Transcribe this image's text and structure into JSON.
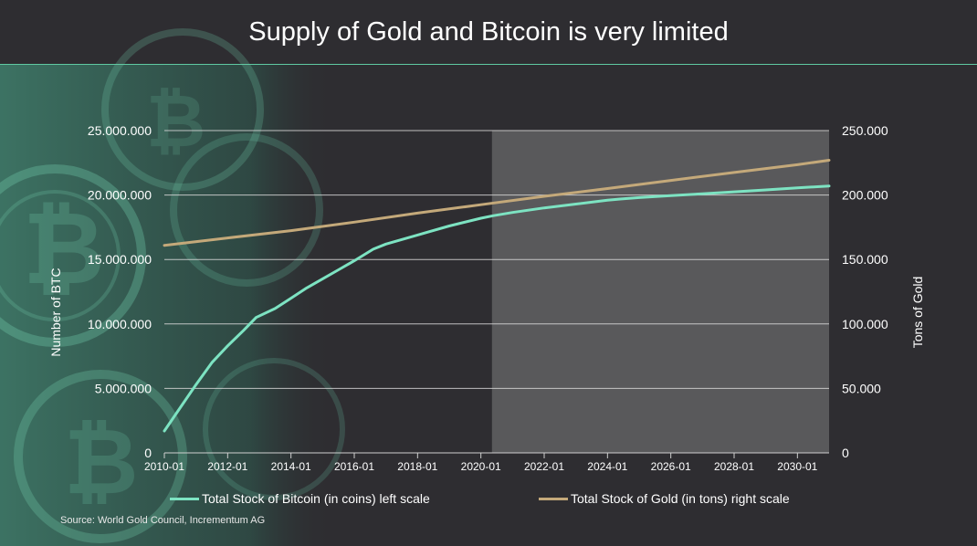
{
  "title": "Supply of Gold and Bitcoin is very limited",
  "source": "Source: World Gold Council, Incrementum AG",
  "colors": {
    "bitcoin": "#7de3c2",
    "gold": "#c4a97a",
    "forecast": "#59595b",
    "grid": "#d9d9d9",
    "background": "#2e2d31",
    "accent": "#5fc9a2"
  },
  "chart_data": {
    "type": "line",
    "title": "Supply of Gold and Bitcoin is very limited",
    "xlabel": "",
    "ylabel": "Number of  BTC",
    "y2label": "Tons of Gold",
    "x_range": [
      2010.0,
      2031.0
    ],
    "ylim": [
      0,
      25000000
    ],
    "y2lim": [
      0,
      250000
    ],
    "grid": true,
    "forecast_start": 2020.35,
    "x_ticks": [
      "2010-01",
      "2012-01",
      "2014-01",
      "2016-01",
      "2018-01",
      "2020-01",
      "2022-01",
      "2024-01",
      "2026-01",
      "2028-01",
      "2030-01"
    ],
    "y_ticks": [
      "0",
      "5.000.000",
      "10.000.000",
      "15.000.000",
      "20.000.000",
      "25.000.000"
    ],
    "y2_ticks": [
      "0",
      "50.000",
      "100.000",
      "150.000",
      "200.000",
      "250.000"
    ],
    "series": [
      {
        "name": "Total Stock of Bitcoin (in coins) left scale",
        "axis": "left",
        "x": [
          2010.0,
          2010.5,
          2011.0,
          2011.5,
          2012.0,
          2012.5,
          2012.9,
          2013.5,
          2014.0,
          2014.5,
          2015.0,
          2015.5,
          2016.0,
          2016.6,
          2017.0,
          2018.0,
          2019.0,
          2020.0,
          2020.4,
          2021.0,
          2022.0,
          2023.0,
          2024.0,
          2024.4,
          2025.0,
          2026.0,
          2027.0,
          2028.0,
          2029.0,
          2030.0,
          2031.0
        ],
        "values": [
          1700000,
          3500000,
          5300000,
          7000000,
          8300000,
          9500000,
          10500000,
          11200000,
          12000000,
          12800000,
          13500000,
          14200000,
          14900000,
          15800000,
          16200000,
          16900000,
          17600000,
          18200000,
          18400000,
          18650000,
          19000000,
          19300000,
          19600000,
          19690000,
          19800000,
          19950000,
          20100000,
          20250000,
          20400000,
          20550000,
          20700000
        ]
      },
      {
        "name": "Total Stock of Gold (in tons) right scale",
        "axis": "right",
        "x": [
          2010.0,
          2012.0,
          2014.0,
          2016.0,
          2018.0,
          2020.0,
          2022.0,
          2024.0,
          2026.0,
          2028.0,
          2030.0,
          2031.0
        ],
        "values": [
          161000,
          166700,
          172400,
          179000,
          186000,
          192500,
          199000,
          205000,
          211300,
          217500,
          223500,
          227000
        ]
      }
    ]
  }
}
